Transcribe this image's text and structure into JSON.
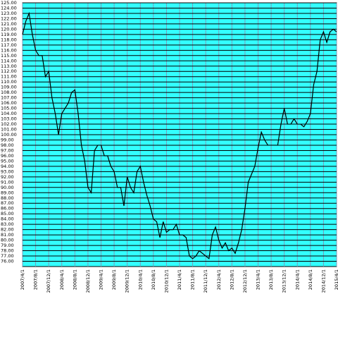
{
  "chart_data": {
    "type": "line",
    "x": [
      "2007/4/1",
      "2007/5/1",
      "2007/6/1",
      "2007/7/1",
      "2007/8/1",
      "2007/9/1",
      "2007/10/1",
      "2007/11/1",
      "2007/12/1",
      "2008/1/1",
      "2008/2/1",
      "2008/3/1",
      "2008/4/1",
      "2008/5/1",
      "2008/6/1",
      "2008/7/1",
      "2008/8/1",
      "2008/9/1",
      "2008/10/1",
      "2008/11/1",
      "2008/12/1",
      "2009/1/1",
      "2009/2/1",
      "2009/3/1",
      "2009/4/1",
      "2009/5/1",
      "2009/6/1",
      "2009/7/1",
      "2009/8/1",
      "2009/9/1",
      "2009/10/1",
      "2009/11/1",
      "2009/12/1",
      "2010/1/1",
      "2010/2/1",
      "2010/3/1",
      "2010/4/1",
      "2010/5/1",
      "2010/6/1",
      "2010/7/1",
      "2010/8/1",
      "2010/9/1",
      "2010/10/1",
      "2010/11/1",
      "2010/12/1",
      "2011/1/1",
      "2011/2/1",
      "2011/3/1",
      "2011/4/1",
      "2011/5/1",
      "2011/6/1",
      "2011/7/1",
      "2011/8/1",
      "2011/9/1",
      "2011/10/1",
      "2011/11/1",
      "2011/12/1",
      "2012/1/1",
      "2012/2/1",
      "2012/3/1",
      "2012/4/1",
      "2012/5/1",
      "2012/6/1",
      "2012/7/1",
      "2012/8/1",
      "2012/9/1",
      "2012/10/1",
      "2012/11/1",
      "2012/12/1",
      "2013/1/1",
      "2013/2/1",
      "2013/3/1",
      "2013/4/1",
      "2013/5/1",
      "2013/6/1",
      "2013/7/1",
      "2013/8/1",
      "2013/9/1",
      "2013/10/1",
      "2013/11/1",
      "2013/12/1",
      "2014/1/1",
      "2014/2/1",
      "2014/3/1",
      "2014/4/1",
      "2014/5/1",
      "2014/6/1",
      "2014/7/1",
      "2014/8/1",
      "2014/9/1",
      "2014/10/1",
      "2014/11/1",
      "2014/12/1",
      "2015/1/1",
      "2015/2/1",
      "2015/3/1",
      "2015/4/1"
    ],
    "series": [
      {
        "color": "#000000",
        "values": [
          119,
          121.5,
          123,
          119,
          116,
          115,
          115,
          111,
          112,
          107,
          104,
          100,
          104,
          105,
          106,
          108,
          108.5,
          104,
          98,
          95,
          90,
          89,
          97,
          98,
          98,
          96,
          96,
          94,
          93,
          90,
          90,
          86.5,
          92,
          90,
          89,
          93,
          94,
          91,
          88.5,
          86.5,
          84,
          83.5,
          80.5,
          83.5,
          81.5,
          82,
          82,
          83,
          81,
          81,
          80.5,
          77,
          76.5,
          77,
          78,
          77.5,
          77,
          76.5,
          81,
          82.5,
          80,
          78.5,
          79.5,
          78,
          78.5,
          77.5,
          79.5,
          82,
          86,
          91,
          92.5,
          94,
          97.5,
          100.5,
          99,
          98,
          98,
          98,
          98,
          102,
          105,
          102,
          102,
          103,
          102,
          102,
          101.5,
          102.5,
          104,
          109.5,
          112,
          118,
          119.5,
          117.5,
          119.5,
          120,
          119.5
        ]
      }
    ],
    "xlim": [
      "2007/4/1",
      "2015/4/1"
    ],
    "xticks": [
      "2007/4/1",
      "2007/8/1",
      "2007/12/1",
      "2008/4/1",
      "2008/8/1",
      "2008/12/1",
      "2009/4/1",
      "2009/8/1",
      "2009/12/1",
      "2010/4/1",
      "2010/8/1",
      "2010/12/1",
      "2011/4/1",
      "2011/8/1",
      "2011/12/1",
      "2012/4/1",
      "2012/8/1",
      "2012/12/1",
      "2013/4/1",
      "2013/8/1",
      "2013/12/1",
      "2014/4/1",
      "2014/8/1",
      "2014/12/1",
      "2015/4/1"
    ],
    "ylim": [
      75,
      125
    ],
    "yticks": [
      {
        "value": 125,
        "label": "125.00"
      },
      {
        "value": 124,
        "label": "124.00"
      },
      {
        "value": 123,
        "label": "123.00"
      },
      {
        "value": 122,
        "label": "122.00"
      },
      {
        "value": 121,
        "label": "121.00"
      },
      {
        "value": 120,
        "label": "120.00"
      },
      {
        "value": 119,
        "label": "119.00"
      },
      {
        "value": 118,
        "label": "118.00"
      },
      {
        "value": 117,
        "label": "117.00"
      },
      {
        "value": 116,
        "label": "116.00"
      },
      {
        "value": 115,
        "label": "115.00"
      },
      {
        "value": 114,
        "label": "114.00"
      },
      {
        "value": 113,
        "label": "113.00"
      },
      {
        "value": 112,
        "label": "112.00"
      },
      {
        "value": 111,
        "label": "111.00"
      },
      {
        "value": 110,
        "label": "110.00"
      },
      {
        "value": 109,
        "label": "109.00"
      },
      {
        "value": 108,
        "label": "108.00"
      },
      {
        "value": 107,
        "label": "107.00"
      },
      {
        "value": 106,
        "label": "106.00"
      },
      {
        "value": 105,
        "label": "105.00"
      },
      {
        "value": 104,
        "label": "104.00"
      },
      {
        "value": 103,
        "label": "103.00"
      },
      {
        "value": 102,
        "label": "102.00"
      },
      {
        "value": 101,
        "label": "101.00"
      },
      {
        "value": 100,
        "label": "100.00"
      },
      {
        "value": 99,
        "label": "99.00"
      },
      {
        "value": 98,
        "label": "98.00"
      },
      {
        "value": 97,
        "label": "97.00"
      },
      {
        "value": 96,
        "label": "96.00"
      },
      {
        "value": 95,
        "label": "95.00"
      },
      {
        "value": 94,
        "label": "94.00"
      },
      {
        "value": 93,
        "label": "93.00"
      },
      {
        "value": 92,
        "label": "92.00"
      },
      {
        "value": 91,
        "label": "91.00"
      },
      {
        "value": 90,
        "label": "90.00"
      },
      {
        "value": 89,
        "label": "89.00"
      },
      {
        "value": 88,
        "label": "88.00"
      },
      {
        "value": 87,
        "label": "87.00"
      },
      {
        "value": 86,
        "label": "86.00"
      },
      {
        "value": 85,
        "label": "85.00"
      },
      {
        "value": 84,
        "label": "84.00"
      },
      {
        "value": 83,
        "label": "83.00"
      },
      {
        "value": 82,
        "label": "82.00"
      },
      {
        "value": 81,
        "label": "81.00"
      },
      {
        "value": 80,
        "label": "80.00"
      },
      {
        "value": 79,
        "label": "79.00"
      },
      {
        "value": 78,
        "label": "78.00"
      },
      {
        "value": 77,
        "label": "77.00"
      },
      {
        "value": 76,
        "label": "76.00"
      }
    ],
    "grid": true,
    "background": "#33ffff"
  }
}
